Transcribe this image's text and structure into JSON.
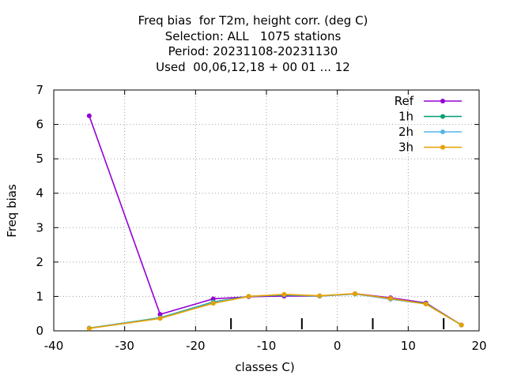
{
  "title_lines": [
    "Freq bias  for T2m, height corr. (deg C)",
    "Selection: ALL   1075 stations",
    "Period: 20231108-20231130",
    "Used  00,06,12,18 + 00 01 ... 12"
  ],
  "chart_data": {
    "type": "line",
    "xlabel": "classes C)",
    "ylabel": "Freq bias",
    "xlim": [
      -40,
      20
    ],
    "ylim": [
      0,
      7
    ],
    "xticks": [
      -40,
      -30,
      -20,
      -10,
      0,
      10,
      20
    ],
    "yticks": [
      0,
      1,
      2,
      3,
      4,
      5,
      6,
      7
    ],
    "grid": true,
    "legend_position": "top-right",
    "x": [
      -35,
      -25,
      -17.5,
      -12.5,
      -7.5,
      -2.5,
      2.5,
      7.5,
      12.5,
      17.5
    ],
    "series": [
      {
        "name": "Ref",
        "color": "#9400d3",
        "values": [
          6.25,
          0.48,
          0.93,
          0.99,
          1.01,
          1.01,
          1.08,
          0.96,
          0.81,
          0.17
        ]
      },
      {
        "name": "1h",
        "color": "#009e73",
        "values": [
          0.08,
          0.38,
          0.84,
          1.0,
          1.04,
          1.01,
          1.07,
          0.93,
          0.79,
          0.17
        ]
      },
      {
        "name": "2h",
        "color": "#56b4e9",
        "values": [
          0.08,
          0.37,
          0.82,
          1.0,
          1.05,
          1.01,
          1.07,
          0.92,
          0.78,
          0.17
        ]
      },
      {
        "name": "3h",
        "color": "#e69f00",
        "values": [
          0.07,
          0.36,
          0.8,
          1.0,
          1.06,
          1.02,
          1.08,
          0.94,
          0.78,
          0.17
        ]
      }
    ]
  }
}
